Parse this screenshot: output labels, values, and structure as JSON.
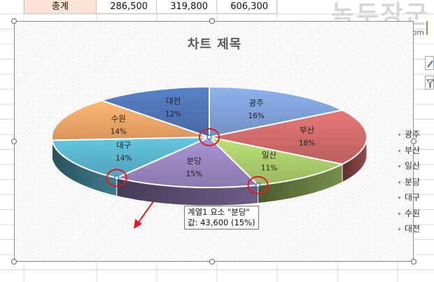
{
  "sheet": {
    "total_row": {
      "label": "총계",
      "values": [
        "286,500",
        "319,800",
        "606,300"
      ]
    }
  },
  "watermark": {
    "title": "녹두장군",
    "url": "http://mainia.tistory.com"
  },
  "chart": {
    "title": "차트 제목",
    "tooltip": {
      "line1": "계열1 요소 \"분당\"",
      "line2": "값:  43,600  (15%)"
    }
  },
  "chart_data": {
    "type": "pie",
    "title": "차트 제목",
    "categories": [
      "광주",
      "부산",
      "일산",
      "분당",
      "대구",
      "수원",
      "대전"
    ],
    "values": [
      16,
      18,
      11,
      15,
      14,
      14,
      12
    ],
    "value_unit": "%",
    "data_labels": [
      "16%",
      "18%",
      "11%",
      "15%",
      "14%",
      "14%",
      "12%"
    ],
    "colors": [
      "#7f9fd6",
      "#cf6a6a",
      "#aacb6a",
      "#9a85bf",
      "#5ab3cb",
      "#f0a566",
      "#4f74b4"
    ],
    "style": "3d-pie",
    "legend_position": "right"
  }
}
